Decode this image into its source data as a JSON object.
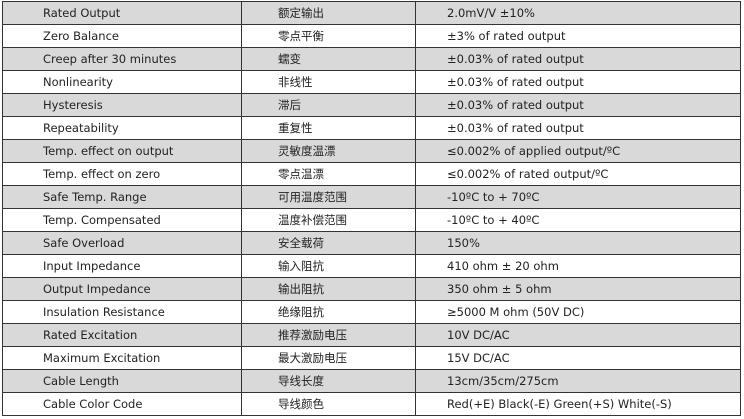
{
  "rows": [
    {
      "param": "Rated Output",
      "param_cn": "额定输出",
      "value": "2.0mV/V ±10%"
    },
    {
      "param": "Zero Balance",
      "param_cn": "零点平衡",
      "value": "±3% of rated output"
    },
    {
      "param": "Creep after 30 minutes",
      "param_cn": "蠕变",
      "value": "±0.03% of rated output"
    },
    {
      "param": "Nonlinearity",
      "param_cn": "非线性",
      "value": "±0.03% of rated output"
    },
    {
      "param": "Hysteresis",
      "param_cn": "滞后",
      "value": "±0.03% of rated output"
    },
    {
      "param": "Repeatability",
      "param_cn": "重复性",
      "value": "±0.03% of rated output"
    },
    {
      "param": "Temp. effect on output",
      "param_cn": "灵敏度温漂",
      "value": "≤0.002% of applied output/ºC"
    },
    {
      "param": "Temp. effect on zero",
      "param_cn": "零点温漂",
      "value": "≤0.002% of rated output/ºC"
    },
    {
      "param": "Safe Temp. Range",
      "param_cn": "可用温度范围",
      "value": "-10ºC to + 70ºC"
    },
    {
      "param": "Temp. Compensated",
      "param_cn": "温度补偿范围",
      "value": "-10ºC to + 40ºC"
    },
    {
      "param": "Safe Overload",
      "param_cn": "安全载荷",
      "value": "150%"
    },
    {
      "param": "Input Impedance",
      "param_cn": "输入阻抗",
      "value": "410 ohm ± 20 ohm"
    },
    {
      "param": "Output Impedance",
      "param_cn": "输出阻抗",
      "value": "350 ohm ± 5 ohm"
    },
    {
      "param": "Insulation Resistance",
      "param_cn": "绝缘阻抗",
      "value": "≥5000 M ohm (50V DC)"
    },
    {
      "param": "Rated Excitation",
      "param_cn": "推荐激励电压",
      "value": "10V DC/AC"
    },
    {
      "param": "Maximum Excitation",
      "param_cn": "最大激励电压",
      "value": "15V DC/AC"
    },
    {
      "param": "Cable Length",
      "param_cn": "导线长度",
      "value": "13cm/35cm/275cm"
    },
    {
      "param": "Cable Color Code",
      "param_cn": "导线颜色",
      "value": "Red(+E) Black(-E) Green(+S) White(-S)"
    }
  ],
  "colors": {
    "stripe": "#d9d9d9",
    "border": "#333333"
  }
}
